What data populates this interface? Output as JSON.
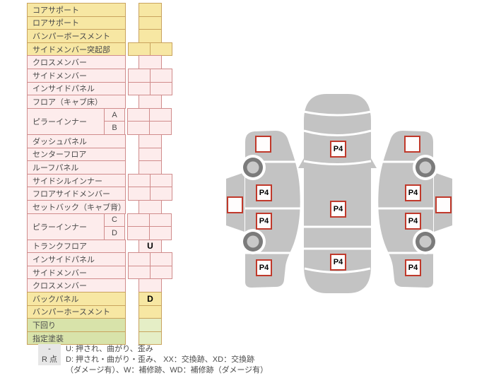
{
  "palette": {
    "yellow_bg": "#f7e7a3",
    "pink_bg": "#fdecec",
    "green_label_bg": "#d8e3aa",
    "green_cell_bg": "#e5eec6",
    "yellow_border": "#c9a35e",
    "pink_border": "#d08c8c",
    "damage_box_border": "#c0392b",
    "car_body_gray": "#c3c3c3",
    "wheel_dark_gray": "#7b7b7b",
    "legend_key_bg": "#e7e7e7"
  },
  "parts_table": {
    "rows": [
      {
        "label": "コアサポート",
        "color": "yellow",
        "cells": 1
      },
      {
        "label": "ロアサポート",
        "color": "yellow",
        "cells": 1
      },
      {
        "label": "バンパーボースメント",
        "color": "yellow",
        "cells": 1
      },
      {
        "label": "サイドメンバー突起部",
        "color": "yellow",
        "cells": 2
      },
      {
        "label": "クロスメンバー",
        "color": "pink",
        "cells": 1
      },
      {
        "label": "サイドメンバー",
        "color": "pink",
        "cells": 2
      },
      {
        "label": "インサイドパネル",
        "color": "pink",
        "cells": 2
      },
      {
        "label": "フロア（キャブ床）",
        "color": "pink",
        "cells": 1
      },
      {
        "group": "ピラーインナー",
        "color": "pink",
        "subs": [
          {
            "label": "A",
            "cells": 2
          },
          {
            "label": "B",
            "cells": 2
          }
        ]
      },
      {
        "label": "ダッシュパネル",
        "color": "pink",
        "cells": 1
      },
      {
        "label": "センターフロア",
        "color": "pink",
        "cells": 1
      },
      {
        "label": "ルーフパネル",
        "color": "pink",
        "cells": 1
      },
      {
        "label": "サイドシルインナー",
        "color": "pink",
        "cells": 2
      },
      {
        "label": "フロアサイドメンバー",
        "color": "pink",
        "cells": 2
      },
      {
        "label": "セットバック（キャブ背）",
        "color": "pink",
        "cells": 1
      },
      {
        "group": "ピラーインナー",
        "color": "pink",
        "subs": [
          {
            "label": "C",
            "cells": 2
          },
          {
            "label": "D",
            "cells": 2
          }
        ]
      },
      {
        "label": "トランクフロア",
        "color": "pink",
        "cells": 1,
        "mark": "U"
      },
      {
        "label": "インサイドパネル",
        "color": "pink",
        "cells": 2
      },
      {
        "label": "サイドメンバー",
        "color": "pink",
        "cells": 2
      },
      {
        "label": "クロスメンバー",
        "color": "pink",
        "cells": 1
      },
      {
        "label": "バックパネル",
        "color": "yellow",
        "cells": 1,
        "mark": "D"
      },
      {
        "label": "バンパーホースメント",
        "color": "yellow",
        "cells": 1
      },
      {
        "label": "下回り",
        "color": "green",
        "cells": 1
      },
      {
        "label": "指定塗装",
        "color": "green",
        "cells": 1
      }
    ]
  },
  "diagram": {
    "marks": [
      {
        "view": "left-side",
        "part": "front-fender",
        "slot": "ls-front-fender",
        "label": ""
      },
      {
        "view": "left-side",
        "part": "front-door",
        "slot": "ls-front-door",
        "label": "P4"
      },
      {
        "view": "left-side",
        "part": "rear-door",
        "slot": "ls-rear-door",
        "label": "P4"
      },
      {
        "view": "left-side",
        "part": "rear-fender",
        "slot": "ls-rear-fender",
        "label": "P4"
      },
      {
        "view": "left-side",
        "part": "sill",
        "slot": "ls-sill",
        "label": ""
      },
      {
        "view": "top",
        "part": "hood",
        "slot": "top-hood",
        "label": "P4"
      },
      {
        "view": "top",
        "part": "roof",
        "slot": "top-roof",
        "label": "P4"
      },
      {
        "view": "top",
        "part": "trunk",
        "slot": "top-trunk",
        "label": "P4"
      },
      {
        "view": "right-side",
        "part": "front-fender",
        "slot": "rs-front-fender",
        "label": ""
      },
      {
        "view": "right-side",
        "part": "front-door",
        "slot": "rs-front-door",
        "label": "P4"
      },
      {
        "view": "right-side",
        "part": "rear-door",
        "slot": "rs-rear-door",
        "label": "P4"
      },
      {
        "view": "right-side",
        "part": "rear-fender",
        "slot": "rs-rear-fender",
        "label": "P4"
      },
      {
        "view": "right-side",
        "part": "sill",
        "slot": "rs-sill",
        "label": ""
      }
    ]
  },
  "legend": {
    "key1": "-",
    "text1": "U: 押され、曲がり、歪み",
    "key2": "R 点",
    "text2": "D: 押され・曲がり・歪み、 XX：交換跡、XD：交換跡",
    "text3": "（ダメージ有）、W：補修跡、WD：補修跡（ダメージ有）"
  }
}
